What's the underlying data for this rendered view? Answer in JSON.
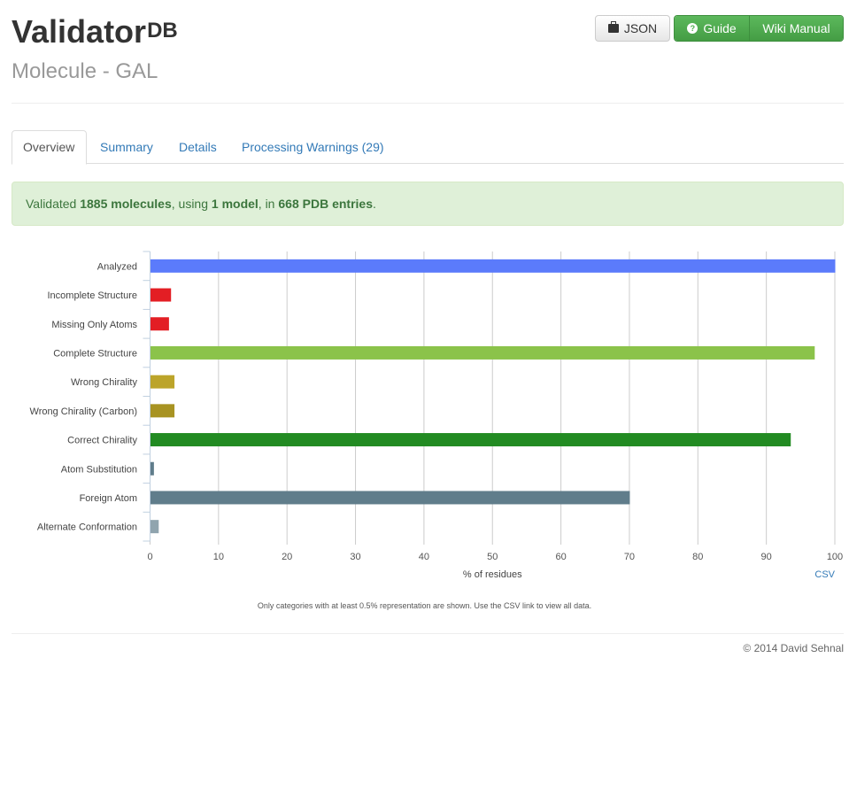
{
  "header": {
    "app_name": "Validator",
    "app_superscript": "DB",
    "subtitle": "Molecule - GAL",
    "buttons": {
      "json": "JSON",
      "guide": "Guide",
      "wiki": "Wiki Manual"
    }
  },
  "tabs": [
    {
      "label": "Overview",
      "active": true
    },
    {
      "label": "Summary",
      "active": false
    },
    {
      "label": "Details",
      "active": false
    },
    {
      "label": "Processing Warnings (29)",
      "active": false
    }
  ],
  "alert": {
    "prefix": "Validated ",
    "molecules": "1885 molecules",
    "mid1": ", using ",
    "models": "1 model",
    "mid2": ", in ",
    "entries": "668 PDB entries",
    "suffix": "."
  },
  "chart_data": {
    "type": "bar",
    "orientation": "horizontal",
    "categories": [
      "Analyzed",
      "Incomplete Structure",
      "Missing Only Atoms",
      "Complete Structure",
      "Wrong Chirality",
      "Wrong Chirality (Carbon)",
      "Correct Chirality",
      "Atom Substitution",
      "Foreign Atom",
      "Alternate Conformation"
    ],
    "values": [
      100,
      3.0,
      2.7,
      97.0,
      3.5,
      3.5,
      93.5,
      0.5,
      70.0,
      1.2
    ],
    "colors": [
      "#5b7bfb",
      "#e31e24",
      "#e31e24",
      "#8bc34a",
      "#bca42a",
      "#a89322",
      "#228b22",
      "#607d8b",
      "#607d8b",
      "#90a4ae"
    ],
    "xlabel": "% of residues",
    "xlim": [
      0,
      100
    ],
    "xticks": [
      "0",
      "10",
      "20",
      "30",
      "40",
      "50",
      "60",
      "70",
      "80",
      "90",
      "100"
    ],
    "grid": true,
    "csv_link": "CSV",
    "note": "Only categories with at least 0.5% representation are shown. Use the CSV link to view all data."
  },
  "footer": {
    "copyright": "© 2014 David Sehnal"
  }
}
